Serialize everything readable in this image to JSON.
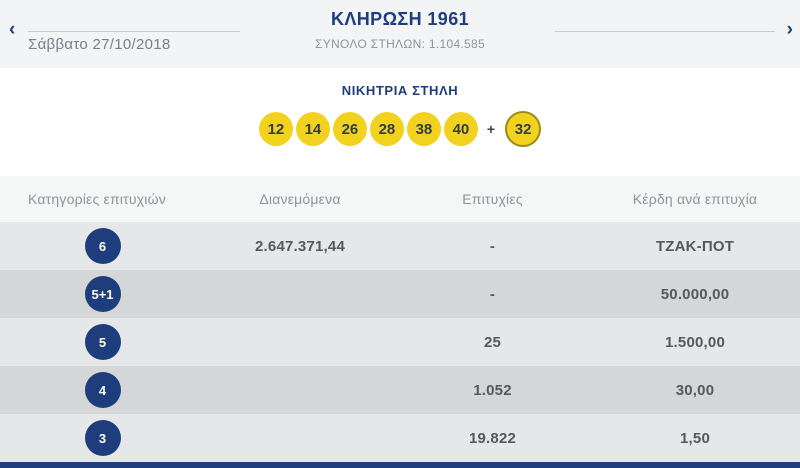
{
  "header": {
    "prev_arrow": "‹",
    "next_arrow": "›",
    "date": "Σάββατο 27/10/2018",
    "title": "ΚΛΗΡΩΣΗ 1961",
    "total_columns_label": "ΣΥΝΟΛΟ ΣΤΗΛΩΝ:",
    "total_columns_value": "1.104.585"
  },
  "winning": {
    "title": "ΝΙΚΗΤΡΙΑ ΣΤΗΛΗ",
    "numbers": [
      "12",
      "14",
      "26",
      "28",
      "38",
      "40"
    ],
    "plus": "+",
    "bonus": "32"
  },
  "table": {
    "headers": [
      "Κατηγορίες επιτυχιών",
      "Διανεμόμενα",
      "Επιτυχίες",
      "Κέρδη ανά επιτυχία"
    ],
    "rows": [
      {
        "category": "6",
        "distributed": "2.647.371,44",
        "winners": "-",
        "prize": "ΤΖΑΚ-ΠΟΤ"
      },
      {
        "category": "5+1",
        "distributed": "",
        "winners": "-",
        "prize": "50.000,00"
      },
      {
        "category": "5",
        "distributed": "",
        "winners": "25",
        "prize": "1.500,00"
      },
      {
        "category": "4",
        "distributed": "",
        "winners": "1.052",
        "prize": "30,00"
      },
      {
        "category": "3",
        "distributed": "",
        "winners": "19.822",
        "prize": "1,50"
      }
    ]
  },
  "colors": {
    "navy": "#1d3d7c",
    "yellow": "#f2d21f",
    "bonus-border": "#9c8b17",
    "row-light": "#e6e7e9",
    "row-dark": "#d4d6d8"
  }
}
